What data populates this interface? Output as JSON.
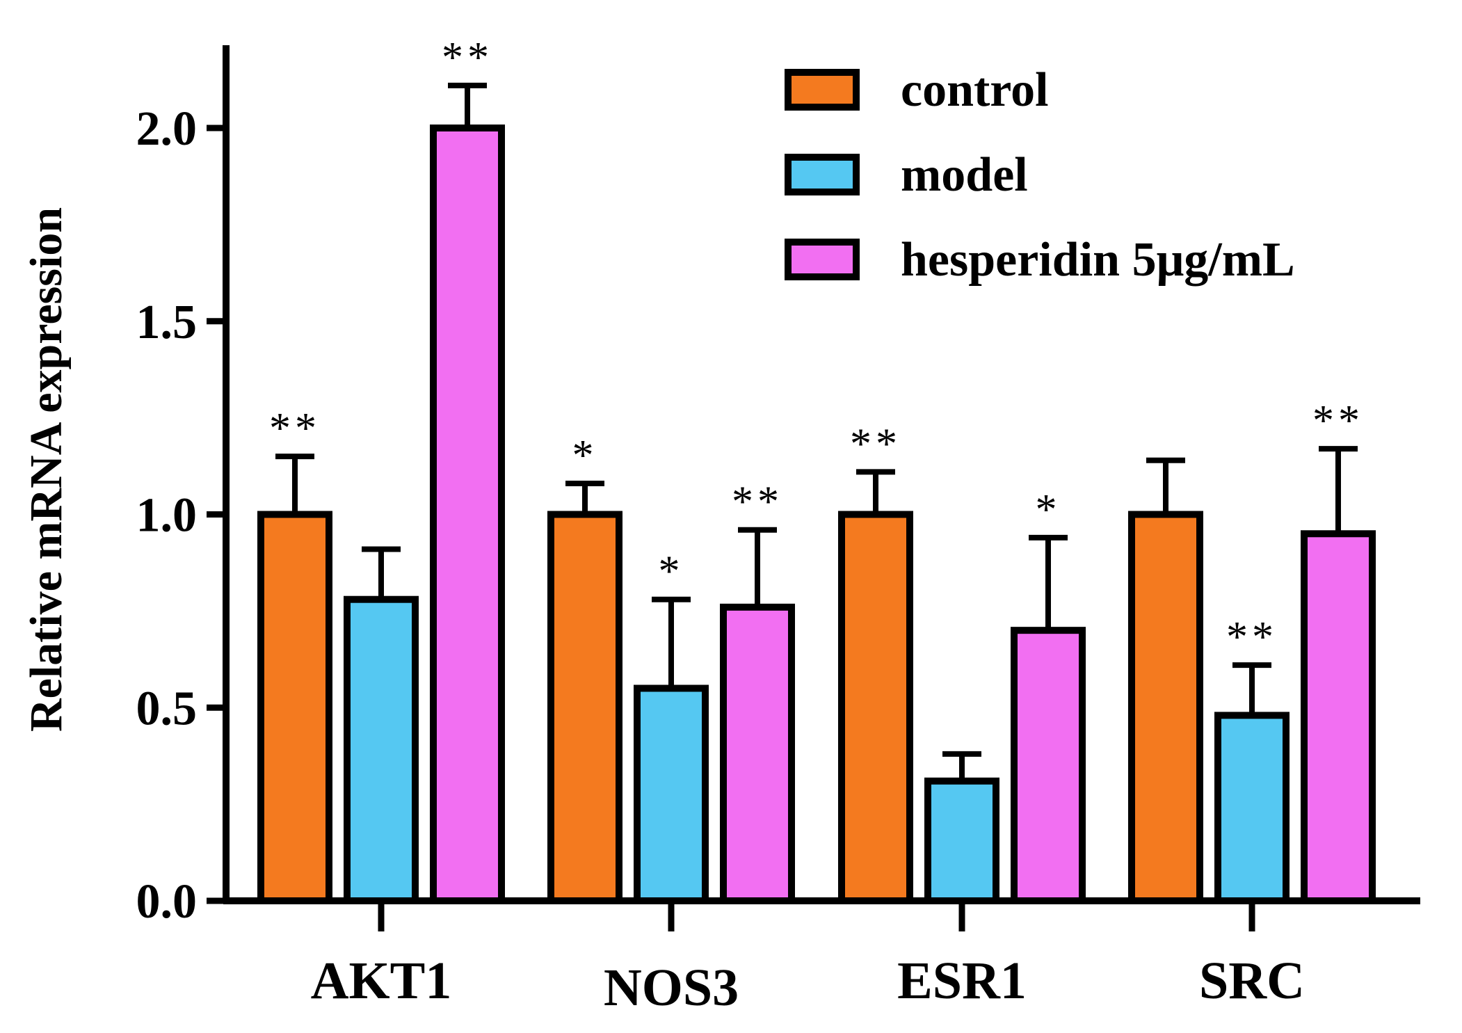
{
  "chart_data": {
    "type": "bar",
    "ylabel": "Relative mRNA expression",
    "xlabel": "",
    "ylim": [
      0,
      2.2
    ],
    "yticks": [
      "0.0",
      "0.5",
      "1.0",
      "1.5",
      "2.0"
    ],
    "yticks_values": [
      0,
      0.5,
      1.0,
      1.5,
      2.0
    ],
    "categories": [
      "AKT1",
      "NOS3",
      "ESR1",
      "SRC"
    ],
    "legend_position": "top-right",
    "series": [
      {
        "name": "control",
        "color": "#F47A1F",
        "values": [
          1.0,
          1.0,
          1.0,
          1.0
        ],
        "errors": [
          0.15,
          0.08,
          0.11,
          0.14
        ],
        "significance": [
          "**",
          "*",
          "**",
          ""
        ]
      },
      {
        "name": "model",
        "color": "#55C8F2",
        "values": [
          0.78,
          0.55,
          0.31,
          0.48
        ],
        "errors": [
          0.13,
          0.23,
          0.07,
          0.13
        ],
        "significance": [
          "",
          "*",
          "",
          "**"
        ]
      },
      {
        "name": "hesperidin 5μg/mL",
        "color": "#F26FF2",
        "values": [
          2.0,
          0.76,
          0.7,
          0.95
        ],
        "errors": [
          0.11,
          0.2,
          0.24,
          0.22
        ],
        "significance": [
          "**",
          "**",
          "*",
          "**"
        ]
      }
    ]
  }
}
